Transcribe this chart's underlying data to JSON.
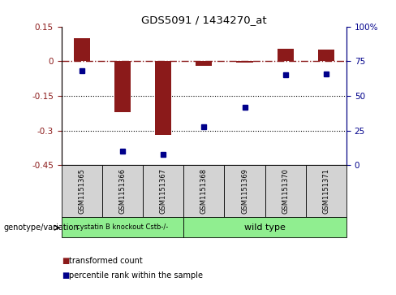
{
  "title": "GDS5091 / 1434270_at",
  "samples": [
    "GSM1151365",
    "GSM1151366",
    "GSM1151367",
    "GSM1151368",
    "GSM1151369",
    "GSM1151370",
    "GSM1151371"
  ],
  "bar_values": [
    0.1,
    -0.22,
    -0.32,
    -0.02,
    -0.005,
    0.055,
    0.05
  ],
  "percentile_values": [
    68,
    10,
    8,
    28,
    42,
    65,
    66
  ],
  "ylim_left": [
    -0.45,
    0.15
  ],
  "ylim_right": [
    0,
    100
  ],
  "yticks_left": [
    0.15,
    0,
    -0.15,
    -0.3,
    -0.45
  ],
  "yticks_right": [
    100,
    75,
    50,
    25,
    0
  ],
  "bar_color": "#8B1A1A",
  "dot_color": "#00008B",
  "dotted_lines": [
    -0.15,
    -0.3
  ],
  "group1_label": "cystatin B knockout Cstb-/-",
  "group2_label": "wild type",
  "group1_indices": [
    0,
    1,
    2
  ],
  "group2_indices": [
    3,
    4,
    5,
    6
  ],
  "genotype_label": "genotype/variation",
  "legend1_label": "transformed count",
  "legend2_label": "percentile rank within the sample",
  "panel_bg": "#d3d3d3",
  "group_color": "#90EE90",
  "fig_width": 4.88,
  "fig_height": 3.63,
  "bar_width": 0.4
}
